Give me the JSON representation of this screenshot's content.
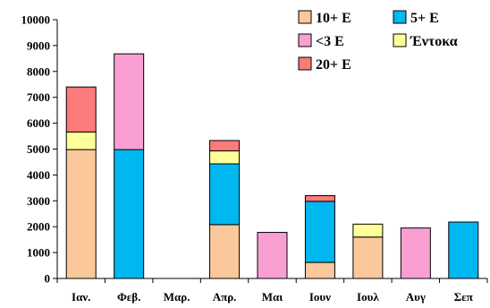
{
  "chart_data": {
    "type": "bar",
    "stacked": true,
    "categories": [
      "Ιαν.",
      "Φεβ.",
      "Μαρ.",
      "Απρ.",
      "Μαι",
      "Ιουν",
      "Ιουλ",
      "Αυγ",
      "Σεπ"
    ],
    "series": [
      {
        "name": "10+ E",
        "color": "#fbc89b",
        "values": [
          4980,
          0,
          0,
          2080,
          0,
          620,
          1600,
          0,
          0
        ]
      },
      {
        "name": "5+ E",
        "color": "#00b7f0",
        "values": [
          0,
          4980,
          0,
          2350,
          0,
          2360,
          0,
          0,
          2180
        ]
      },
      {
        "name": "<3 E",
        "color": "#f99fd2",
        "values": [
          0,
          3700,
          0,
          0,
          1780,
          0,
          0,
          1950,
          0
        ]
      },
      {
        "name": "Έντοκα",
        "color": "#ffff99",
        "values": [
          680,
          0,
          0,
          500,
          0,
          0,
          500,
          0,
          0
        ]
      },
      {
        "name": "20+ E",
        "color": "#fb7a7a",
        "values": [
          1740,
          0,
          0,
          400,
          0,
          220,
          0,
          0,
          0
        ]
      }
    ],
    "ylim": [
      0,
      10000
    ],
    "yticks": [
      0,
      1000,
      2000,
      3000,
      4000,
      5000,
      6000,
      7000,
      8000,
      9000,
      10000
    ],
    "grid": false,
    "legend_position": "top-right",
    "legend_order": [
      "10+ E",
      "5+ E",
      "<3 E",
      "Έντοκα",
      "20+ E"
    ]
  }
}
